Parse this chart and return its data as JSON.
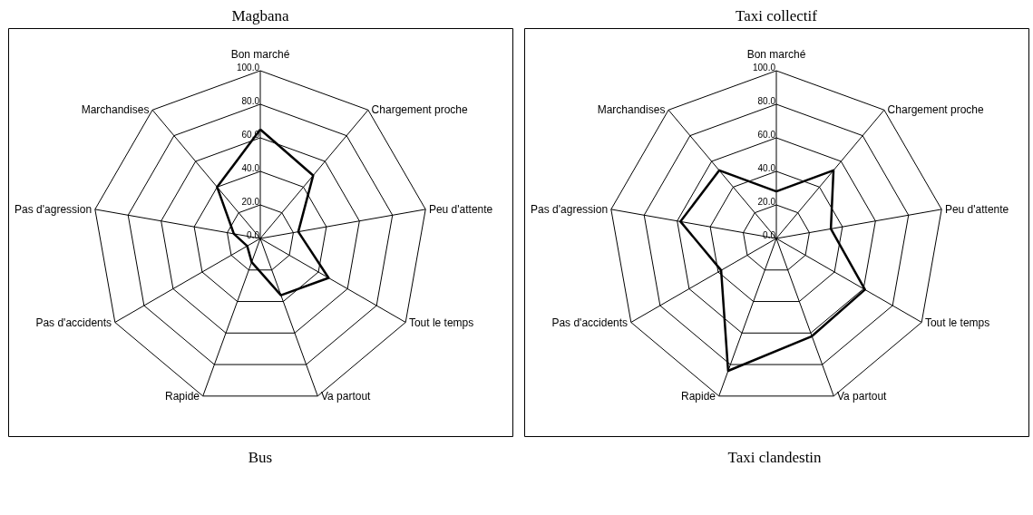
{
  "chart_data": [
    {
      "type": "radar",
      "title": "Magbana",
      "categories": [
        "Bon marché",
        "Chargement proche",
        "Peu d'attente",
        "Tout le temps",
        "Va partout",
        "Rapide",
        "Pas d'accidents",
        "Pas d'agression",
        "Marchandises"
      ],
      "ylim": [
        0,
        100
      ],
      "yticks": [
        {
          "value": 0,
          "label": "0.0"
        },
        {
          "value": 20,
          "label": "20.0"
        },
        {
          "value": 40,
          "label": "40.0"
        },
        {
          "value": 60,
          "label": "60.0"
        },
        {
          "value": 80,
          "label": "80.0"
        },
        {
          "value": 100,
          "label": "100.0"
        }
      ],
      "grid": true,
      "series": [
        {
          "color": "#000000",
          "values": [
            65,
            49,
            23,
            47,
            36,
            15,
            9,
            16,
            40
          ]
        }
      ]
    },
    {
      "type": "radar",
      "title": "Taxi collectif",
      "categories": [
        "Bon marché",
        "Chargement proche",
        "Peu d'attente",
        "Tout le temps",
        "Va partout",
        "Rapide",
        "Pas d'accidents",
        "Pas d'agression",
        "Marchandises"
      ],
      "ylim": [
        0,
        100
      ],
      "yticks": [
        {
          "value": 0,
          "label": "0.0"
        },
        {
          "value": 20,
          "label": "20.0"
        },
        {
          "value": 40,
          "label": "40.0"
        },
        {
          "value": 60,
          "label": "60.0"
        },
        {
          "value": 80,
          "label": "80.0"
        },
        {
          "value": 100,
          "label": "100.0"
        }
      ],
      "grid": true,
      "series": [
        {
          "color": "#000000",
          "values": [
            28,
            53,
            33,
            61,
            62,
            84,
            38,
            58,
            53
          ]
        }
      ]
    },
    {
      "type": "other",
      "title": "Bus"
    },
    {
      "type": "other",
      "title": "Taxi clandestin"
    }
  ]
}
